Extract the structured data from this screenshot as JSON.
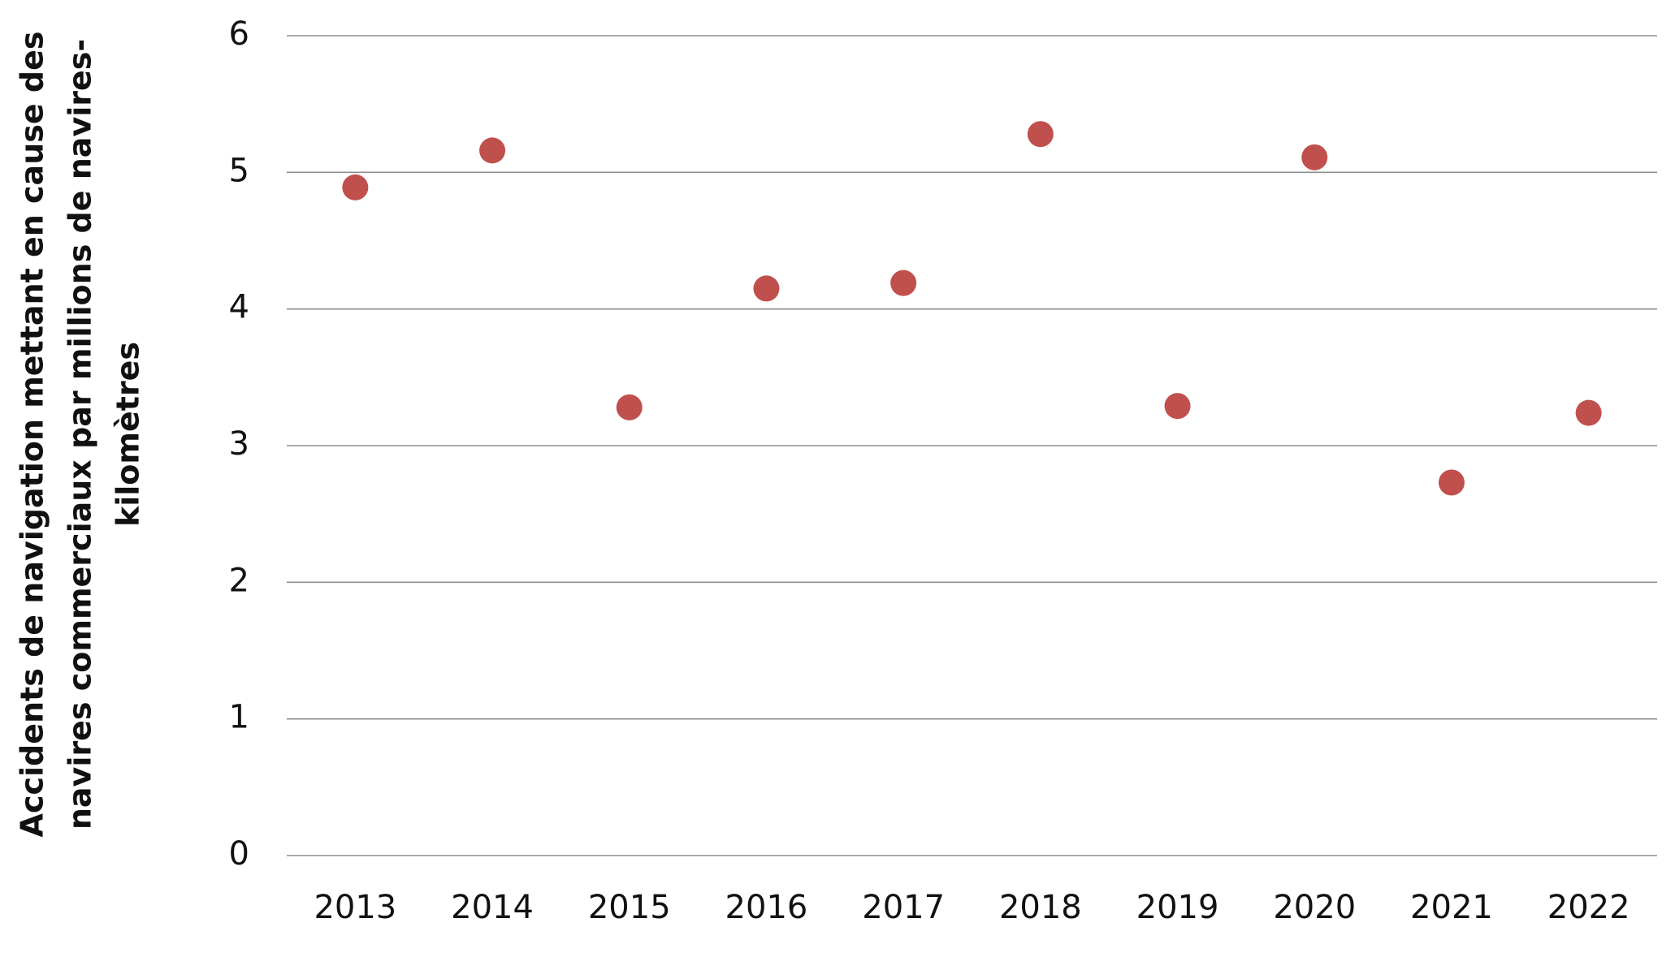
{
  "chart_data": {
    "type": "scatter",
    "ylabel": [
      "Accidents de navigation mettant en cause des",
      "navires commerciaux par millions de navires-",
      "kilomètres"
    ],
    "categories": [
      "2013",
      "2014",
      "2015",
      "2016",
      "2017",
      "2018",
      "2019",
      "2020",
      "2021",
      "2022"
    ],
    "values": [
      4.89,
      5.16,
      3.28,
      4.15,
      4.19,
      5.28,
      3.29,
      5.11,
      2.73,
      3.24
    ],
    "color": "#c0504d",
    "ylim": [
      0,
      6
    ],
    "yticks": [
      0,
      1,
      2,
      3,
      4,
      5,
      6
    ],
    "grid": true
  }
}
